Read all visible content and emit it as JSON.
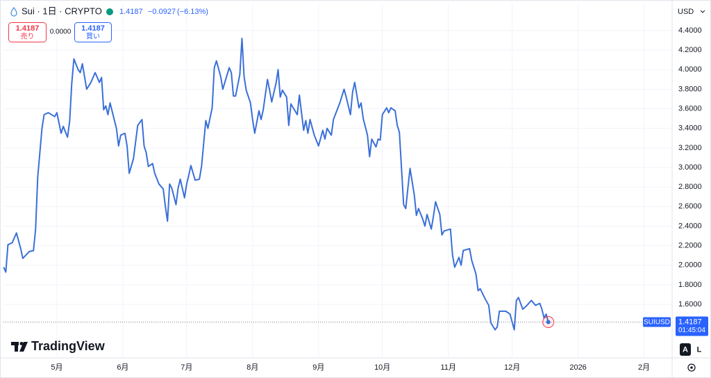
{
  "header": {
    "title": "Sui · 1日 · CRYPTO",
    "price": "1.4187",
    "change": "−0.0927",
    "change_pct": "(−6.13%)"
  },
  "trade": {
    "sell_price": "1.4187",
    "sell_label": "売り",
    "spread": "0.0000",
    "buy_price": "1.4187",
    "buy_label": "買い"
  },
  "currency": "USD",
  "price_tag": {
    "symbol": "SUIUSD",
    "price": "1.4187",
    "countdown": "01:45:04"
  },
  "logo": "TradingView",
  "buttons": [
    "A",
    "L"
  ],
  "chart_data": {
    "type": "line",
    "color": "#3a6fd8",
    "grid": true,
    "xlim": [
      4.9,
      319.2
    ],
    "ylim": [
      1.053,
      4.677
    ],
    "xticks": [
      {
        "value": 30,
        "label": "5月"
      },
      {
        "value": 61,
        "label": "6月"
      },
      {
        "value": 91,
        "label": "7月"
      },
      {
        "value": 122,
        "label": "8月"
      },
      {
        "value": 153,
        "label": "9月"
      },
      {
        "value": 183,
        "label": "10月"
      },
      {
        "value": 214,
        "label": "11月"
      },
      {
        "value": 244,
        "label": "12月"
      },
      {
        "value": 275,
        "label": "2026"
      },
      {
        "value": 306,
        "label": "2月"
      }
    ],
    "yticks": [
      {
        "value": 1.6,
        "label": "1.6000"
      },
      {
        "value": 1.8,
        "label": "1.8000"
      },
      {
        "value": 2.0,
        "label": "2.0000"
      },
      {
        "value": 2.2,
        "label": "2.2000"
      },
      {
        "value": 2.4,
        "label": "2.4000"
      },
      {
        "value": 2.6,
        "label": "2.6000"
      },
      {
        "value": 2.8,
        "label": "2.8000"
      },
      {
        "value": 3.0,
        "label": "3.0000"
      },
      {
        "value": 3.2,
        "label": "3.2000"
      },
      {
        "value": 3.4,
        "label": "3.4000"
      },
      {
        "value": 3.6,
        "label": "3.6000"
      },
      {
        "value": 3.8,
        "label": "3.8000"
      },
      {
        "value": 4.0,
        "label": "4.0000"
      },
      {
        "value": 4.2,
        "label": "4.2000"
      },
      {
        "value": 4.4,
        "label": "4.4000"
      }
    ],
    "x": [
      5,
      6,
      7,
      9,
      11,
      13,
      14,
      17,
      19,
      20,
      21,
      23,
      24,
      26,
      29,
      30,
      32,
      33,
      35,
      36,
      37,
      38,
      40,
      41,
      42,
      44,
      46,
      48,
      50,
      51,
      52,
      53,
      54,
      55,
      58,
      59,
      60,
      62,
      63,
      64,
      66,
      68,
      70,
      71,
      72,
      73,
      75,
      76,
      78,
      80,
      81,
      82,
      83,
      84,
      86,
      87,
      88,
      90,
      91,
      92,
      93,
      95,
      97,
      98,
      100,
      101,
      103,
      104,
      105,
      107,
      108,
      111,
      112,
      113,
      114,
      116,
      117,
      118,
      119,
      121,
      122,
      123,
      125,
      126,
      127,
      129,
      130,
      131,
      133,
      134,
      135,
      136,
      138,
      139,
      140,
      143,
      144,
      146,
      147,
      148,
      149,
      151,
      153,
      155,
      156,
      157,
      159,
      160,
      163,
      165,
      166,
      168,
      169,
      170,
      172,
      173,
      174,
      176,
      177,
      178,
      180,
      181,
      182,
      183,
      185,
      186,
      187,
      189,
      190,
      191,
      193,
      194,
      195,
      196,
      198,
      199,
      200,
      202,
      203,
      204,
      206,
      207,
      208,
      210,
      211,
      212,
      215,
      216,
      217,
      219,
      220,
      221,
      224,
      225,
      227,
      228,
      229,
      231,
      233,
      234,
      236,
      237,
      238,
      241,
      243,
      245,
      246,
      247,
      249,
      251,
      253,
      255,
      257,
      258,
      259,
      260,
      261
    ],
    "values": [
      1.98,
      1.93,
      2.21,
      2.23,
      2.33,
      2.17,
      2.07,
      2.14,
      2.15,
      2.37,
      2.9,
      3.4,
      3.54,
      3.56,
      3.52,
      3.56,
      3.35,
      3.42,
      3.31,
      3.47,
      3.86,
      4.11,
      4.0,
      3.97,
      4.06,
      3.8,
      3.87,
      3.97,
      3.87,
      3.92,
      3.59,
      3.63,
      3.54,
      3.66,
      3.4,
      3.22,
      3.33,
      3.35,
      3.22,
      2.94,
      3.09,
      3.43,
      3.49,
      3.22,
      3.15,
      3.01,
      3.04,
      2.94,
      2.83,
      2.78,
      2.6,
      2.45,
      2.83,
      2.79,
      2.62,
      2.79,
      2.88,
      2.69,
      2.83,
      2.92,
      3.02,
      2.87,
      2.88,
      3.01,
      3.48,
      3.4,
      3.61,
      4.02,
      4.09,
      3.93,
      3.8,
      4.02,
      3.97,
      3.73,
      3.73,
      3.95,
      4.32,
      3.93,
      3.79,
      3.66,
      3.49,
      3.35,
      3.58,
      3.49,
      3.59,
      3.9,
      3.79,
      3.67,
      3.86,
      4.0,
      3.72,
      3.79,
      3.72,
      3.43,
      3.65,
      3.54,
      3.74,
      3.38,
      3.48,
      3.35,
      3.49,
      3.33,
      3.22,
      3.38,
      3.29,
      3.4,
      3.33,
      3.49,
      3.66,
      3.8,
      3.72,
      3.54,
      3.77,
      3.87,
      3.61,
      3.66,
      3.5,
      3.33,
      3.11,
      3.29,
      3.21,
      3.29,
      3.28,
      3.54,
      3.61,
      3.56,
      3.61,
      3.58,
      3.43,
      3.36,
      2.62,
      2.58,
      2.79,
      2.99,
      2.72,
      2.51,
      2.58,
      2.47,
      2.4,
      2.52,
      2.37,
      2.5,
      2.65,
      2.52,
      2.31,
      2.35,
      2.37,
      2.1,
      1.98,
      2.08,
      2.0,
      2.15,
      2.17,
      2.05,
      1.91,
      1.74,
      1.76,
      1.67,
      1.59,
      1.41,
      1.34,
      1.37,
      1.53,
      1.53,
      1.5,
      1.34,
      1.64,
      1.67,
      1.55,
      1.59,
      1.64,
      1.59,
      1.61,
      1.55,
      1.46,
      1.5,
      1.4187
    ]
  }
}
